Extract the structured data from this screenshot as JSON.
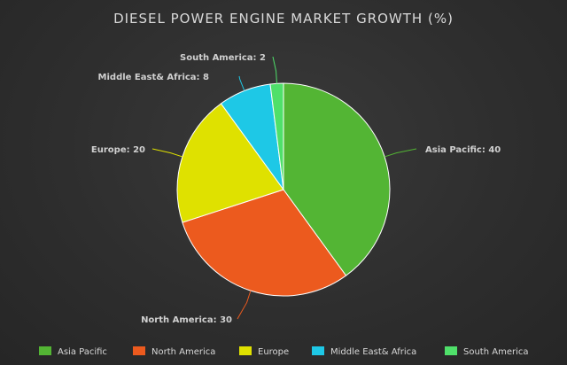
{
  "chart_data": {
    "type": "pie",
    "title": "DIESEL POWER ENGINE MARKET GROWTH (%)",
    "categories": [
      "Asia Pacific",
      "North America",
      "Europe",
      "Middle East& Africa",
      "South America"
    ],
    "values": [
      40,
      30,
      20,
      8,
      2
    ],
    "colors": [
      "#53b534",
      "#ec5a1e",
      "#dfe100",
      "#1ec8e6",
      "#4fe06a"
    ],
    "data_labels": [
      "Asia Pacific: 40",
      "North America: 30",
      "Europe: 20",
      "Middle East& Africa: 8",
      "South America: 2"
    ],
    "legend_labels": [
      "Asia Pacific",
      "North America",
      "Europe",
      "Middle East& Africa",
      "South America"
    ],
    "legend_position": "bottom"
  }
}
